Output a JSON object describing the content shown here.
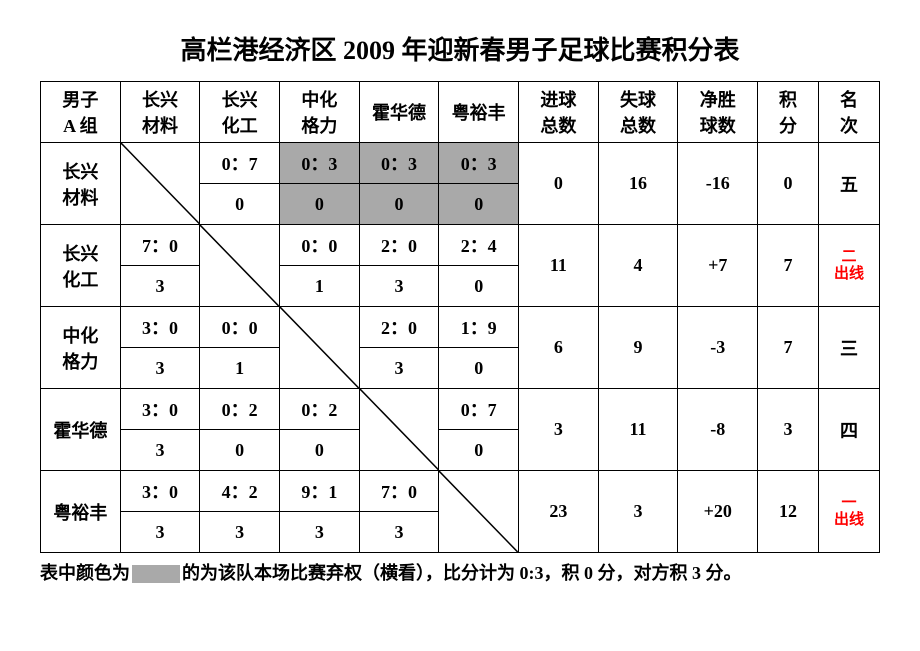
{
  "title": "高栏港经济区 2009 年迎新春男子足球比赛积分表",
  "title_fontsize": 26,
  "colors": {
    "text": "#000000",
    "background": "#ffffff",
    "shaded": "#a9a9a9",
    "highlight": "#ff0000",
    "border": "#000000"
  },
  "header": {
    "group": "男子\nA 组",
    "teams": [
      "长兴\n材料",
      "长兴\n化工",
      "中化\n格力",
      "霍华德",
      "粤裕丰"
    ],
    "stats": [
      "进球\n总数",
      "失球\n总数",
      "净胜\n球数",
      "积\n分",
      "名\n次"
    ]
  },
  "rows": [
    {
      "name": "长兴\n材料",
      "cells": [
        {
          "diag": true
        },
        {
          "score": "0：7",
          "pts": "0",
          "shaded": false
        },
        {
          "score": "0：3",
          "pts": "0",
          "shaded": true
        },
        {
          "score": "0：3",
          "pts": "0",
          "shaded": true
        },
        {
          "score": "0：3",
          "pts": "0",
          "shaded": true
        }
      ],
      "gf": "0",
      "ga": "16",
      "gd": "-16",
      "pts": "0",
      "rank": "五",
      "rank_red": false
    },
    {
      "name": "长兴\n化工",
      "cells": [
        {
          "score": "7：0",
          "pts": "3",
          "shaded": false
        },
        {
          "diag": true
        },
        {
          "score": "0：0",
          "pts": "1",
          "shaded": false
        },
        {
          "score": "2：0",
          "pts": "3",
          "shaded": false
        },
        {
          "score": "2：4",
          "pts": "0",
          "shaded": false
        }
      ],
      "gf": "11",
      "ga": "4",
      "gd": "+7",
      "pts": "7",
      "rank": "二\n出线",
      "rank_red": true
    },
    {
      "name": "中化\n格力",
      "cells": [
        {
          "score": "3：0",
          "pts": "3",
          "shaded": false
        },
        {
          "score": "0：0",
          "pts": "1",
          "shaded": false
        },
        {
          "diag": true
        },
        {
          "score": "2：0",
          "pts": "3",
          "shaded": false
        },
        {
          "score": "1：9",
          "pts": "0",
          "shaded": false
        }
      ],
      "gf": "6",
      "ga": "9",
      "gd": "-3",
      "pts": "7",
      "rank": "三",
      "rank_red": false
    },
    {
      "name": "霍华德",
      "cells": [
        {
          "score": "3：0",
          "pts": "3",
          "shaded": false
        },
        {
          "score": "0：2",
          "pts": "0",
          "shaded": false
        },
        {
          "score": "0：2",
          "pts": "0",
          "shaded": false
        },
        {
          "diag": true
        },
        {
          "score": "0：7",
          "pts": "0",
          "shaded": false
        }
      ],
      "gf": "3",
      "ga": "11",
      "gd": "-8",
      "pts": "3",
      "rank": "四",
      "rank_red": false
    },
    {
      "name": "粤裕丰",
      "cells": [
        {
          "score": "3：0",
          "pts": "3",
          "shaded": false
        },
        {
          "score": "4：2",
          "pts": "3",
          "shaded": false
        },
        {
          "score": "9：1",
          "pts": "3",
          "shaded": false
        },
        {
          "score": "7：0",
          "pts": "3",
          "shaded": false
        },
        {
          "diag": true
        }
      ],
      "gf": "23",
      "ga": "3",
      "gd": "+20",
      "pts": "12",
      "rank": "一\n出线",
      "rank_red": true
    }
  ],
  "footnote": {
    "prefix": "表中颜色为",
    "suffix": "的为该队本场比赛弃权（横看），比分计为 0:3，积 0 分，对方积 3 分。"
  }
}
